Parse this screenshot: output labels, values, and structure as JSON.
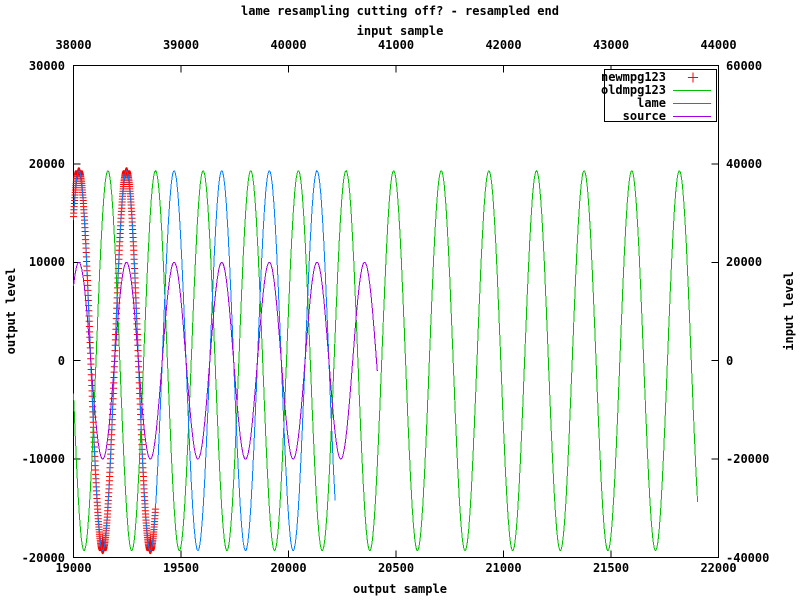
{
  "title": "lame resampling cutting off? - resampled end",
  "chart_data": {
    "type": "line",
    "title": "lame resampling cutting off? - resampled end",
    "grid": false,
    "x_bottom": {
      "label": "output sample",
      "min": 19000,
      "max": 22000,
      "ticks": [
        19000,
        19500,
        20000,
        20500,
        21000,
        21500,
        22000
      ]
    },
    "x_top": {
      "label": "input sample",
      "min": 38000,
      "max": 44000,
      "ticks": [
        38000,
        39000,
        40000,
        41000,
        42000,
        43000,
        44000
      ]
    },
    "y_left": {
      "label": "output level",
      "min": -20000,
      "max": 30000,
      "ticks": [
        30000,
        20000,
        10000,
        0,
        -10000,
        -20000
      ]
    },
    "y_right": {
      "label": "input level",
      "min": -40000,
      "max": 60000,
      "ticks": [
        60000,
        40000,
        20000,
        0,
        -20000,
        -40000
      ]
    },
    "legend": {
      "position": "top-right",
      "entries": [
        {
          "label": "newmpg123",
          "style": "points",
          "marker": "+",
          "color": "#ff0000"
        },
        {
          "label": "oldmpg123",
          "style": "line",
          "color": "#00c000"
        },
        {
          "label": "lame",
          "style": "line",
          "color": "#0080ff"
        },
        {
          "label": "source",
          "style": "line",
          "color": "#a000e0"
        }
      ]
    },
    "series": [
      {
        "name": "newmpg123",
        "axis": "left",
        "style": "points",
        "marker": "+",
        "color": "#ff0000",
        "waveform": {
          "shape": "sine",
          "amplitude": 19300,
          "period": 221.5,
          "peak_x": 19025,
          "x_start": 19000,
          "x_end": 19381,
          "marker_step": 1
        }
      },
      {
        "name": "oldmpg123",
        "axis": "left",
        "style": "line",
        "color": "#00c000",
        "waveform": {
          "shape": "sine",
          "amplitude": 19300,
          "period": 221.5,
          "peak_x": 19160,
          "x_start": 19000,
          "x_end": 21903
        }
      },
      {
        "name": "lame",
        "axis": "left",
        "style": "line",
        "color": "#0080ff",
        "waveform": {
          "shape": "sine",
          "amplitude": 19300,
          "period": 221.5,
          "peak_x": 19025,
          "x_start": 19000,
          "x_end": 20217
        }
      },
      {
        "name": "source",
        "axis": "right",
        "style": "line",
        "color": "#a000e0",
        "waveform": {
          "shape": "sine",
          "amplitude": 20000,
          "period": 221.5,
          "peak_x": 19025,
          "x_start": 19000,
          "x_end": 20413
        }
      }
    ]
  }
}
